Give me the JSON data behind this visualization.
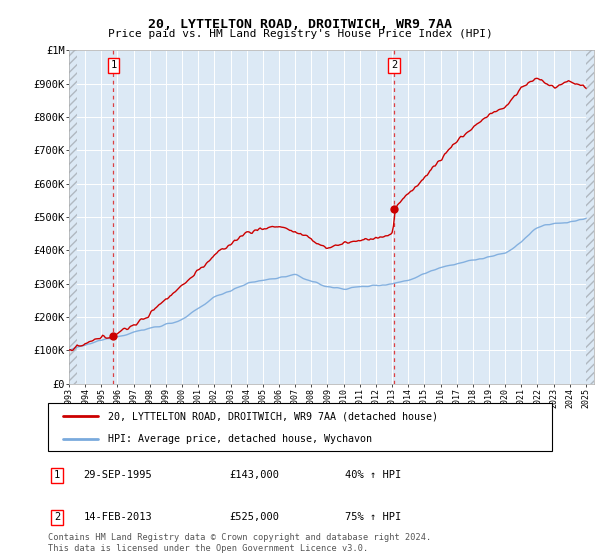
{
  "title": "20, LYTTELTON ROAD, DROITWICH, WR9 7AA",
  "subtitle": "Price paid vs. HM Land Registry's House Price Index (HPI)",
  "ylim": [
    0,
    1000000
  ],
  "yticks": [
    0,
    100000,
    200000,
    300000,
    400000,
    500000,
    600000,
    700000,
    800000,
    900000,
    1000000
  ],
  "ytick_labels": [
    "£0",
    "£100K",
    "£200K",
    "£300K",
    "£400K",
    "£500K",
    "£600K",
    "£700K",
    "£800K",
    "£900K",
    "£1M"
  ],
  "hpi_color": "#7aaadd",
  "sale_color": "#cc0000",
  "marker_color": "#cc0000",
  "sale1_date": 1995.75,
  "sale1_price": 143000,
  "sale2_date": 2013.12,
  "sale2_price": 525000,
  "legend_sale_label": "20, LYTTELTON ROAD, DROITWICH, WR9 7AA (detached house)",
  "legend_hpi_label": "HPI: Average price, detached house, Wychavon",
  "note1_num": "1",
  "note1_date": "29-SEP-1995",
  "note1_price": "£143,000",
  "note1_hpi": "40% ↑ HPI",
  "note2_num": "2",
  "note2_date": "14-FEB-2013",
  "note2_price": "£525,000",
  "note2_hpi": "75% ↑ HPI",
  "footer": "Contains HM Land Registry data © Crown copyright and database right 2024.\nThis data is licensed under the Open Government Licence v3.0.",
  "bg_color": "#dce9f5",
  "xmin": 1993.0,
  "xmax": 2025.5,
  "hatch_xmin": 1993.0,
  "hatch_xmax": 2025.5,
  "data_xstart": 1993.5,
  "data_xend": 2025.0
}
